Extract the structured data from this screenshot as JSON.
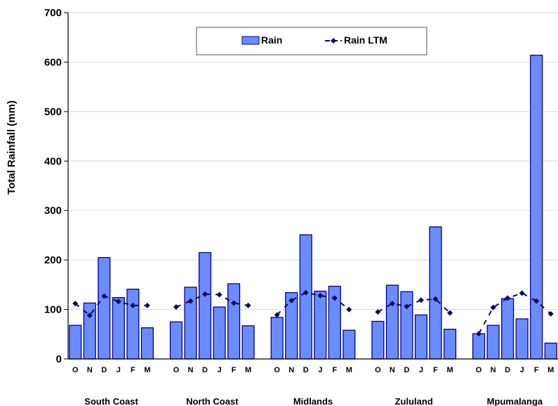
{
  "chart_data": {
    "type": "bar",
    "ylabel": "Total Rainfall (mm)",
    "ylim": [
      0,
      700
    ],
    "yticks": [
      0,
      100,
      200,
      300,
      400,
      500,
      600,
      700
    ],
    "grid": true,
    "legend_position": "top-center",
    "colors": {
      "bar_fill": "#6b8cff",
      "bar_stroke": "#00008b",
      "ltm_line": "#0a0a5a"
    },
    "series": [
      {
        "name": "Rain",
        "kind": "bar"
      },
      {
        "name": "Rain LTM",
        "kind": "line"
      }
    ],
    "groups": [
      {
        "name": "South Coast",
        "months": [
          "O",
          "N",
          "D",
          "J",
          "F",
          "M"
        ],
        "rain": [
          68,
          113,
          205,
          124,
          141,
          63
        ],
        "ltm": [
          112,
          88,
          127,
          116,
          108,
          108
        ]
      },
      {
        "name": "North Coast",
        "months": [
          "O",
          "N",
          "D",
          "J",
          "F",
          "M"
        ],
        "rain": [
          75,
          145,
          215,
          105,
          152,
          67
        ],
        "ltm": [
          105,
          117,
          131,
          130,
          113,
          108
        ]
      },
      {
        "name": "Midlands",
        "months": [
          "O",
          "N",
          "D",
          "J",
          "F",
          "M"
        ],
        "rain": [
          84,
          134,
          251,
          137,
          147,
          58
        ],
        "ltm": [
          89,
          118,
          134,
          128,
          123,
          100
        ]
      },
      {
        "name": "Zululand",
        "months": [
          "O",
          "N",
          "D",
          "J",
          "F",
          "M"
        ],
        "rain": [
          76,
          149,
          136,
          89,
          267,
          60
        ],
        "ltm": [
          95,
          112,
          106,
          119,
          121,
          93
        ]
      },
      {
        "name": "Mpumalanga",
        "months": [
          "O",
          "N",
          "D",
          "J",
          "F",
          "M"
        ],
        "rain": [
          51,
          68,
          122,
          81,
          614,
          32
        ],
        "ltm": [
          51,
          104,
          123,
          133,
          117,
          91
        ]
      }
    ]
  }
}
